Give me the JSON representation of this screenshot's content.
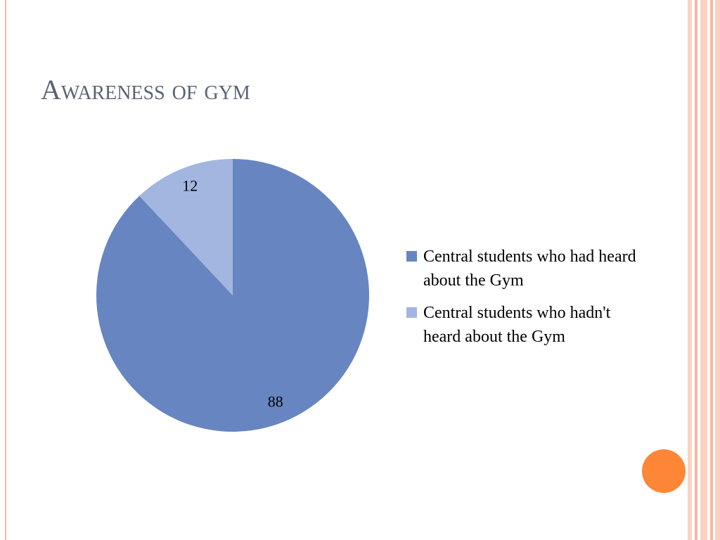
{
  "chart_data": {
    "type": "pie",
    "title": "Awareness of gym",
    "categories": [
      "Central students who had heard about the Gym",
      "Central students who hadn't heard about the Gym"
    ],
    "values": [
      88,
      12
    ],
    "colors": [
      "#6785c1",
      "#a2b6e0"
    ],
    "legend": "right"
  }
}
